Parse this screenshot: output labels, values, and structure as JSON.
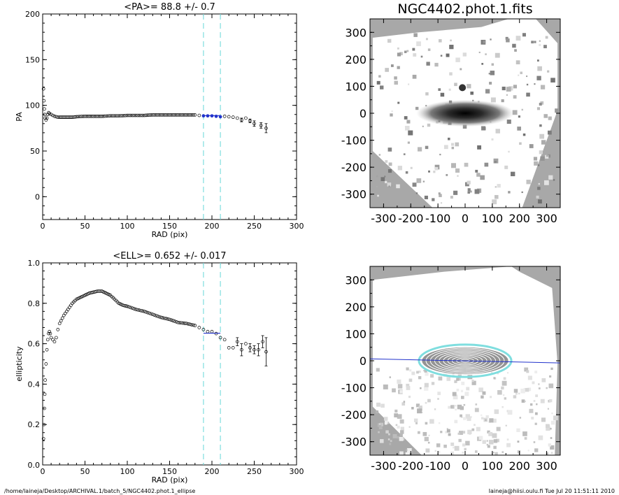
{
  "chart_data": [
    {
      "type": "scatter",
      "title": "<PA>=  88.8 +/-   0.7",
      "xlabel": "RAD (pix)",
      "ylabel": "PA",
      "xlim": [
        0,
        300
      ],
      "ylim": [
        -25,
        200
      ],
      "xticks": [
        0,
        50,
        100,
        150,
        200,
        250,
        300
      ],
      "yticks": [
        0,
        50,
        100,
        150,
        200
      ],
      "vlines": [
        190,
        210
      ],
      "mean_line": 88.8,
      "points": [
        [
          1,
          118
        ],
        [
          1.5,
          105
        ],
        [
          2,
          96
        ],
        [
          2.5,
          90
        ],
        [
          3,
          86
        ],
        [
          4,
          84
        ],
        [
          5,
          86
        ],
        [
          6,
          90
        ],
        [
          7,
          92
        ],
        [
          8,
          91
        ],
        [
          10,
          90
        ],
        [
          12,
          89
        ],
        [
          14,
          88
        ],
        [
          16,
          87.5
        ],
        [
          18,
          87
        ],
        [
          20,
          87
        ],
        [
          25,
          87
        ],
        [
          30,
          87
        ],
        [
          35,
          87
        ],
        [
          40,
          87.5
        ],
        [
          50,
          88
        ],
        [
          60,
          88
        ],
        [
          70,
          88
        ],
        [
          80,
          88.5
        ],
        [
          90,
          88.5
        ],
        [
          100,
          89
        ],
        [
          110,
          89
        ],
        [
          120,
          89
        ],
        [
          130,
          89.5
        ],
        [
          140,
          89.5
        ],
        [
          150,
          89.5
        ],
        [
          160,
          89.5
        ],
        [
          170,
          89.5
        ],
        [
          180,
          89.5
        ],
        [
          185,
          89
        ],
        [
          190,
          88.5
        ],
        [
          195,
          88.5
        ],
        [
          200,
          88.5
        ],
        [
          205,
          88
        ],
        [
          210,
          87.5
        ],
        [
          215,
          88
        ],
        [
          220,
          87.5
        ],
        [
          225,
          87
        ],
        [
          230,
          86
        ],
        [
          235,
          84
        ],
        [
          240,
          86
        ],
        [
          245,
          83
        ],
        [
          250,
          80
        ],
        [
          258,
          78
        ],
        [
          264,
          75
        ]
      ],
      "highlight_x_range": [
        190,
        212
      ],
      "error_bars": [
        [
          235,
          84,
          2
        ],
        [
          245,
          83,
          2
        ],
        [
          250,
          80,
          3
        ],
        [
          258,
          78,
          3
        ],
        [
          264,
          75,
          5
        ]
      ]
    },
    {
      "type": "scatter",
      "title": "<ELL>= 0.652 +/-  0.017",
      "xlabel": "RAD (pix)",
      "ylabel": "ellipticity",
      "xlim": [
        0,
        300
      ],
      "ylim": [
        0,
        1
      ],
      "xticks": [
        0,
        50,
        100,
        150,
        200,
        250,
        300
      ],
      "yticks": [
        0.0,
        0.2,
        0.4,
        0.6,
        0.8,
        1.0
      ],
      "ytick_labels": [
        "0.0",
        "0.2",
        "0.4",
        "0.6",
        "0.8",
        "1.0"
      ],
      "vlines": [
        190,
        210
      ],
      "mean_line": 0.652,
      "points": [
        [
          1,
          0.13
        ],
        [
          1.5,
          0.2
        ],
        [
          2,
          0.28
        ],
        [
          2.5,
          0.35
        ],
        [
          3,
          0.42
        ],
        [
          4,
          0.5
        ],
        [
          5,
          0.57
        ],
        [
          6,
          0.62
        ],
        [
          7,
          0.65
        ],
        [
          8,
          0.66
        ],
        [
          9,
          0.65
        ],
        [
          10,
          0.63
        ],
        [
          12,
          0.62
        ],
        [
          14,
          0.61
        ],
        [
          16,
          0.63
        ],
        [
          18,
          0.67
        ],
        [
          20,
          0.7
        ],
        [
          25,
          0.74
        ],
        [
          30,
          0.77
        ],
        [
          35,
          0.8
        ],
        [
          40,
          0.82
        ],
        [
          45,
          0.83
        ],
        [
          50,
          0.84
        ],
        [
          55,
          0.85
        ],
        [
          60,
          0.855
        ],
        [
          65,
          0.86
        ],
        [
          70,
          0.86
        ],
        [
          75,
          0.85
        ],
        [
          80,
          0.84
        ],
        [
          85,
          0.82
        ],
        [
          90,
          0.8
        ],
        [
          95,
          0.79
        ],
        [
          100,
          0.785
        ],
        [
          110,
          0.77
        ],
        [
          120,
          0.76
        ],
        [
          130,
          0.745
        ],
        [
          140,
          0.73
        ],
        [
          150,
          0.72
        ],
        [
          160,
          0.705
        ],
        [
          170,
          0.7
        ],
        [
          180,
          0.69
        ],
        [
          185,
          0.68
        ],
        [
          190,
          0.67
        ],
        [
          195,
          0.66
        ],
        [
          200,
          0.66
        ],
        [
          205,
          0.65
        ],
        [
          210,
          0.63
        ],
        [
          215,
          0.62
        ],
        [
          220,
          0.58
        ],
        [
          225,
          0.58
        ],
        [
          230,
          0.61
        ],
        [
          235,
          0.57
        ],
        [
          240,
          0.6
        ],
        [
          245,
          0.58
        ],
        [
          250,
          0.57
        ],
        [
          255,
          0.57
        ],
        [
          260,
          0.61
        ],
        [
          264,
          0.56
        ]
      ],
      "error_bars": [
        [
          230,
          0.61,
          0.02
        ],
        [
          235,
          0.57,
          0.03
        ],
        [
          245,
          0.58,
          0.02
        ],
        [
          250,
          0.57,
          0.02
        ],
        [
          255,
          0.57,
          0.03
        ],
        [
          260,
          0.61,
          0.03
        ],
        [
          264,
          0.56,
          0.07
        ]
      ]
    },
    {
      "type": "heatmap",
      "title": "NGC4402.phot.1.fits",
      "xlim": [
        -350,
        350
      ],
      "ylim": [
        -350,
        350
      ],
      "xticks": [
        -300,
        -200,
        -100,
        0,
        100,
        200,
        300
      ],
      "yticks": [
        -300,
        -200,
        -100,
        0,
        100,
        200,
        300
      ],
      "grayscale": true
    },
    {
      "type": "heatmap",
      "title": "",
      "xlim": [
        -350,
        350
      ],
      "ylim": [
        -350,
        350
      ],
      "xticks": [
        -300,
        -200,
        -100,
        0,
        100,
        200,
        300
      ],
      "yticks": [
        -300,
        -200,
        -100,
        0,
        100,
        200,
        300
      ],
      "grayscale": true,
      "overlay": "ellipse contours"
    }
  ],
  "footer": {
    "path": "/home/laineja/Desktop/ARCHIVAL.1/batch_5/NGC4402.phot.1_ellipse",
    "user_stamp": "laineja@hiisi.oulu.fi  Tue Jul 20 11:51:11 2010"
  },
  "colors": {
    "axis": "#000000",
    "vline": "#7fdedf",
    "highlight": "#2233cc",
    "mean_line": "#2233cc",
    "sky": "#a8a8a8",
    "contour_cyan": "#7fdedf"
  }
}
